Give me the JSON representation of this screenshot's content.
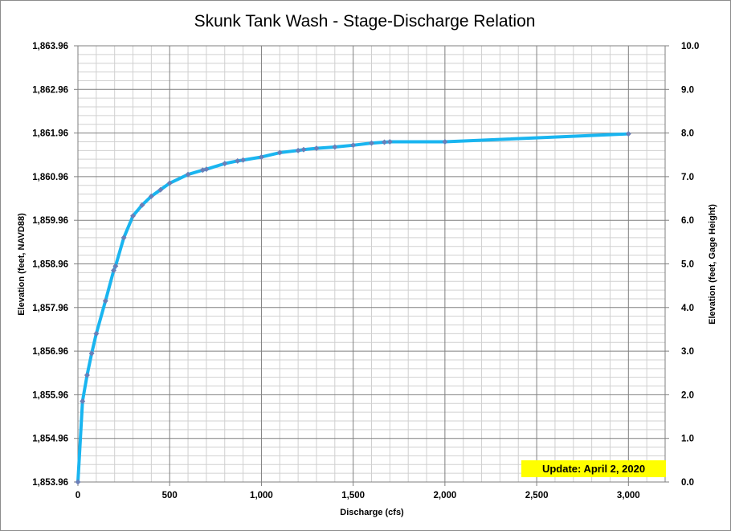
{
  "chart_data": {
    "type": "line",
    "title": "Skunk Tank Wash - Stage-Discharge Relation",
    "xlabel": "Discharge (cfs)",
    "ylabel_left": "Elevation (feet, NAVD88)",
    "ylabel_right": "Elevation (feet, Gage Height)",
    "xlim": [
      0,
      3200
    ],
    "ylim_gage": [
      0,
      10
    ],
    "x_ticks": [
      0,
      500,
      1000,
      1500,
      2000,
      2500,
      3000
    ],
    "x_tick_labels": [
      "0",
      "500",
      "1,000",
      "1,500",
      "2,000",
      "2,500",
      "3,000"
    ],
    "left_tick_labels": [
      "1,853.96",
      "1,854.96",
      "1,855.96",
      "1,856.96",
      "1,857.96",
      "1,858.96",
      "1,859.96",
      "1,860.96",
      "1,861.96",
      "1,862.96",
      "1,863.96"
    ],
    "right_tick_labels": [
      "0.0",
      "1.0",
      "2.0",
      "3.0",
      "4.0",
      "5.0",
      "6.0",
      "7.0",
      "8.0",
      "9.0",
      "10.0"
    ],
    "grid": true,
    "annotation": "Update: April 2, 2020",
    "colors": {
      "line": "#19b5f0",
      "marker": "#6a7fb8",
      "grid_major": "#7f7f7f",
      "grid_minor": "#d0d0d0",
      "annotation_bg": "#ffff00"
    },
    "series": [
      {
        "x": [
          0,
          25,
          50,
          75,
          100,
          150,
          195,
          205,
          250,
          300,
          350,
          400,
          450,
          500,
          600,
          680,
          700,
          800,
          870,
          900,
          1000,
          1100,
          1200,
          1230,
          1300,
          1400,
          1500,
          1600,
          1670,
          1700,
          2000,
          3000
        ],
        "y": [
          0,
          1.85,
          2.45,
          2.95,
          3.4,
          4.15,
          4.85,
          4.95,
          5.6,
          6.1,
          6.35,
          6.55,
          6.7,
          6.85,
          7.05,
          7.15,
          7.17,
          7.3,
          7.36,
          7.38,
          7.45,
          7.55,
          7.6,
          7.62,
          7.65,
          7.68,
          7.72,
          7.77,
          7.79,
          7.8,
          7.8,
          7.98
        ]
      }
    ]
  }
}
